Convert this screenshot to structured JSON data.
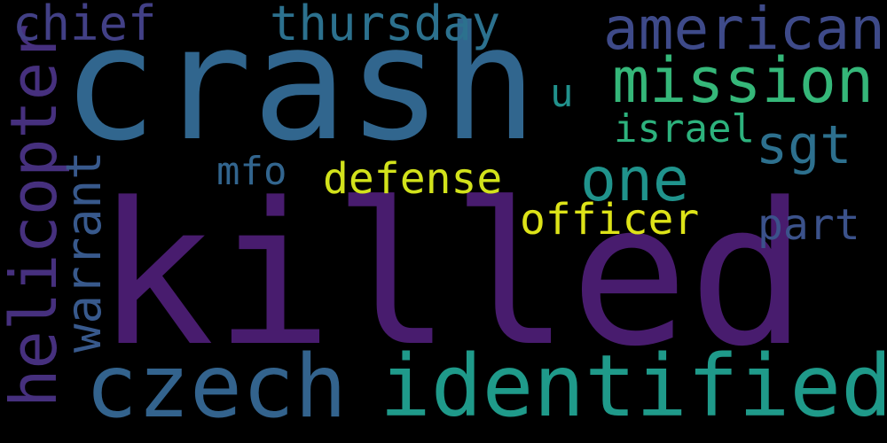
{
  "words": [
    {
      "text": "killed",
      "color": "#481c6e"
    },
    {
      "text": "crash",
      "color": "#31668e"
    },
    {
      "text": "identified",
      "color": "#1f9a8a"
    },
    {
      "text": "czech",
      "color": "#33638d"
    },
    {
      "text": "helicopter",
      "color": "#46307e"
    },
    {
      "text": "american",
      "color": "#3e4a89"
    },
    {
      "text": "mission",
      "color": "#35b779"
    },
    {
      "text": "thursday",
      "color": "#2c718e"
    },
    {
      "text": "chief",
      "color": "#424086"
    },
    {
      "text": "one",
      "color": "#20938c"
    },
    {
      "text": "sgt",
      "color": "#2d708e"
    },
    {
      "text": "warrant",
      "color": "#38598c"
    },
    {
      "text": "officer",
      "color": "#dde318"
    },
    {
      "text": "defense",
      "color": "#d2e21b"
    },
    {
      "text": "part",
      "color": "#3b528b"
    },
    {
      "text": "israel",
      "color": "#2db27d"
    },
    {
      "text": "mfo",
      "color": "#32658e"
    },
    {
      "text": "u",
      "color": "#21918c"
    }
  ]
}
